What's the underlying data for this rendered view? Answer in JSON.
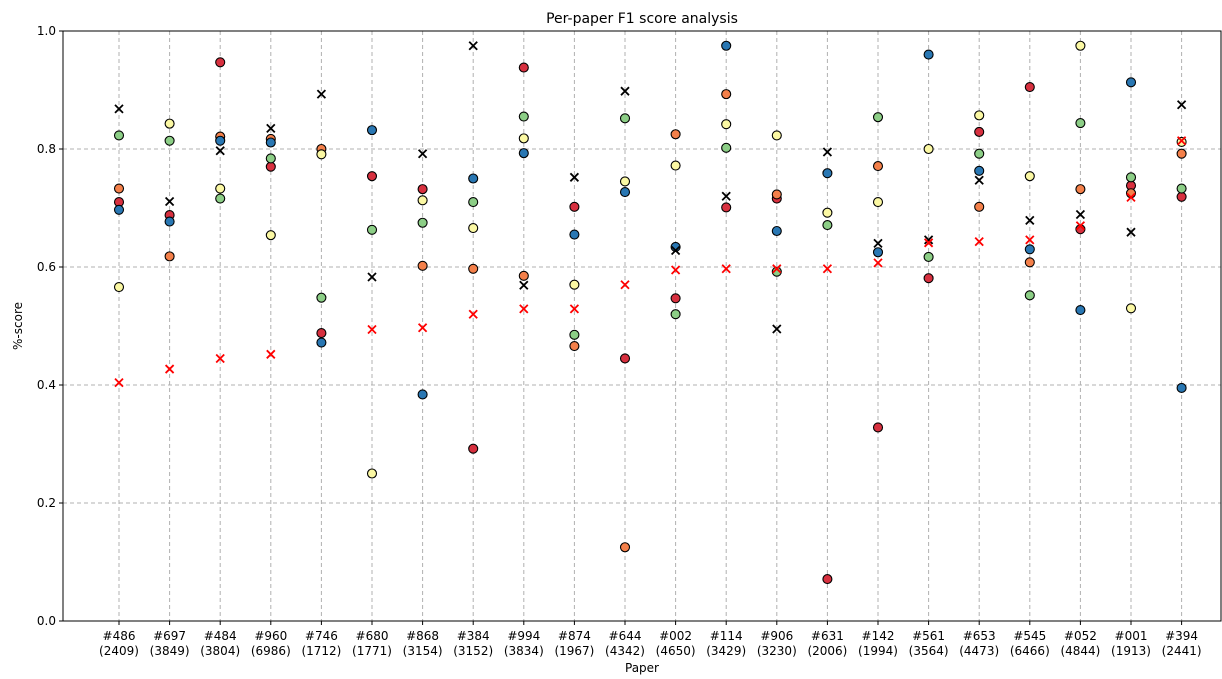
{
  "chart_data": {
    "type": "scatter",
    "title": "Per-paper F1 score analysis",
    "xlabel": "Paper",
    "ylabel": "%-score",
    "ylim": [
      0,
      1.0
    ],
    "yticks": [
      "0.0",
      "0.2",
      "0.4",
      "0.6",
      "0.8",
      "1.0"
    ],
    "grid": true,
    "legend": "none",
    "categories": [
      {
        "id": "#486",
        "count": "(2409)"
      },
      {
        "id": "#697",
        "count": "(3849)"
      },
      {
        "id": "#484",
        "count": "(3804)"
      },
      {
        "id": "#960",
        "count": "(6986)"
      },
      {
        "id": "#746",
        "count": "(1712)"
      },
      {
        "id": "#680",
        "count": "(1771)"
      },
      {
        "id": "#868",
        "count": "(3154)"
      },
      {
        "id": "#384",
        "count": "(3152)"
      },
      {
        "id": "#994",
        "count": "(3834)"
      },
      {
        "id": "#874",
        "count": "(1967)"
      },
      {
        "id": "#644",
        "count": "(4342)"
      },
      {
        "id": "#002",
        "count": "(4650)"
      },
      {
        "id": "#114",
        "count": "(3429)"
      },
      {
        "id": "#906",
        "count": "(3230)"
      },
      {
        "id": "#631",
        "count": "(2006)"
      },
      {
        "id": "#142",
        "count": "(1994)"
      },
      {
        "id": "#561",
        "count": "(3564)"
      },
      {
        "id": "#653",
        "count": "(4473)"
      },
      {
        "id": "#545",
        "count": "(6466)"
      },
      {
        "id": "#052",
        "count": "(4844)"
      },
      {
        "id": "#001",
        "count": "(1913)"
      },
      {
        "id": "#394",
        "count": "(2441)"
      }
    ],
    "series": [
      {
        "marker": "circle",
        "color": "#d7303f",
        "values": [
          0.71,
          0.688,
          0.947,
          0.77,
          0.488,
          0.754,
          0.732,
          0.292,
          0.938,
          0.702,
          0.445,
          0.547,
          0.701,
          0.716,
          0.071,
          0.328,
          0.581,
          0.829,
          0.905,
          0.664,
          0.738,
          0.719
        ]
      },
      {
        "marker": "circle",
        "color": "#f4804a",
        "values": [
          0.733,
          0.618,
          0.821,
          0.817,
          0.8,
          null,
          0.602,
          0.597,
          0.585,
          0.466,
          0.125,
          0.825,
          0.893,
          0.723,
          null,
          0.771,
          null,
          0.702,
          0.608,
          0.732,
          0.725,
          0.792
        ]
      },
      {
        "marker": "circle",
        "color": "#fbf8a3",
        "values": [
          0.566,
          0.843,
          0.733,
          0.654,
          0.791,
          0.25,
          0.713,
          0.666,
          0.818,
          0.57,
          0.745,
          0.772,
          0.842,
          0.823,
          0.692,
          0.71,
          0.8,
          0.857,
          0.754,
          0.975,
          0.53,
          0.812
        ]
      },
      {
        "marker": "circle",
        "color": "#8cce86",
        "values": [
          0.823,
          0.814,
          0.716,
          0.784,
          0.548,
          0.663,
          0.675,
          0.71,
          0.855,
          0.485,
          0.852,
          0.52,
          0.802,
          0.592,
          0.671,
          0.854,
          0.617,
          0.792,
          0.552,
          0.844,
          0.752,
          0.733
        ]
      },
      {
        "marker": "circle",
        "color": "#2977b3",
        "values": [
          0.697,
          0.677,
          0.814,
          0.811,
          0.472,
          0.832,
          0.384,
          0.75,
          0.793,
          0.655,
          0.727,
          0.634,
          0.975,
          0.661,
          0.759,
          0.625,
          0.96,
          0.763,
          0.63,
          0.527,
          0.913,
          0.395
        ]
      },
      {
        "marker": "x",
        "color": "#000000",
        "values": [
          0.868,
          0.711,
          0.797,
          0.835,
          0.893,
          0.583,
          0.792,
          0.975,
          0.569,
          0.752,
          0.898,
          0.628,
          0.72,
          0.495,
          0.795,
          0.64,
          0.646,
          0.747,
          0.679,
          0.689,
          0.659,
          0.875
        ]
      },
      {
        "marker": "x",
        "color": "#ff0000",
        "values": [
          0.404,
          0.427,
          0.445,
          0.452,
          null,
          0.494,
          0.497,
          0.52,
          0.529,
          0.529,
          0.57,
          0.595,
          0.597,
          0.597,
          0.597,
          0.607,
          0.641,
          0.643,
          0.646,
          0.67,
          0.718,
          0.814
        ]
      }
    ]
  }
}
